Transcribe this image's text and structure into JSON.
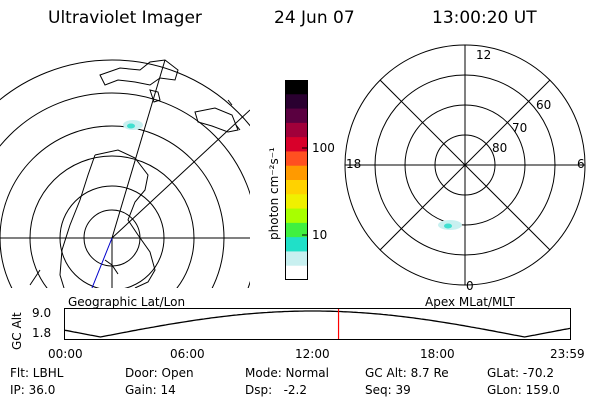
{
  "header": {
    "title": "Ultraviolet Imager",
    "date": "24 Jun 07",
    "time": "13:00:20 UT"
  },
  "colorbar": {
    "unit_label": "photon cm⁻²s⁻¹",
    "ticks": [
      "100",
      "10"
    ],
    "colors": [
      "#000000",
      "#2a0030",
      "#5a0040",
      "#a0003a",
      "#d8002a",
      "#ff5020",
      "#ff9a00",
      "#ffd200",
      "#f0f000",
      "#a8ff00",
      "#40f040",
      "#20e0c8",
      "#c8f0f0",
      "#ffffff"
    ]
  },
  "left_panel": {
    "label": "Geographic Lat/Lon"
  },
  "right_panel": {
    "label": "Apex MLat/MLT",
    "mlt_labels": {
      "top": "12",
      "bottom": "0",
      "left": "18",
      "right": "6"
    },
    "lat_labels": [
      "60",
      "70",
      "80"
    ]
  },
  "timeline": {
    "ylabel": "GC Alt",
    "y_ticks": [
      "9.0",
      "1.8"
    ],
    "x_ticks": [
      "00:00",
      "06:00",
      "12:00",
      "18:00",
      "23:59"
    ],
    "marker_time": "13:00",
    "marker_color": "#ff0000"
  },
  "info": {
    "row1": [
      "Flt: LBHL",
      "Door: Open",
      "Mode: Normal",
      "GC Alt: 8.7 Re",
      "GLat: -70.2"
    ],
    "row2": [
      "IP: 36.0",
      "Gain: 14",
      "Dsp:   -2.2",
      "Seq: 39",
      "GLon: 159.0"
    ]
  }
}
